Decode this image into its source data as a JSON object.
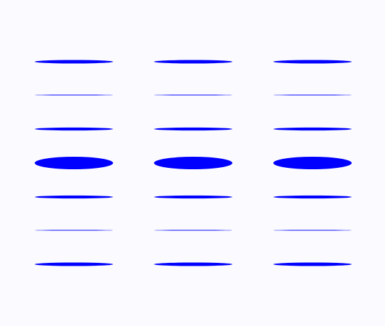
{
  "scene": {
    "background": "#fafaff",
    "ellipse_color": "#0000ff",
    "columns": 3,
    "rows": 7,
    "relative_thickness_by_row": [
      0.28,
      0.06,
      0.24,
      1.0,
      0.24,
      0.06,
      0.28
    ]
  }
}
